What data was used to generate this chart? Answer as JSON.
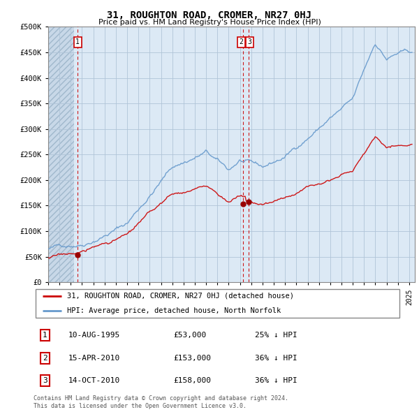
{
  "title": "31, ROUGHTON ROAD, CROMER, NR27 0HJ",
  "subtitle": "Price paid vs. HM Land Registry's House Price Index (HPI)",
  "bg_color": "#ffffff",
  "plot_bg_color": "#dce9f5",
  "hatch_bg_color": "#c8d8e8",
  "grid_color": "#b0c4d8",
  "red_line_color": "#cc0000",
  "blue_line_color": "#6699cc",
  "sale_marker_color": "#990000",
  "ylim": [
    0,
    500000
  ],
  "yticks": [
    0,
    50000,
    100000,
    150000,
    200000,
    250000,
    300000,
    350000,
    400000,
    450000,
    500000
  ],
  "ytick_labels": [
    "£0",
    "£50K",
    "£100K",
    "£150K",
    "£200K",
    "£250K",
    "£300K",
    "£350K",
    "£400K",
    "£450K",
    "£500K"
  ],
  "xlim_start": 1993.0,
  "xlim_end": 2025.5,
  "xticks": [
    1993,
    1994,
    1995,
    1996,
    1997,
    1998,
    1999,
    2000,
    2001,
    2002,
    2003,
    2004,
    2005,
    2006,
    2007,
    2008,
    2009,
    2010,
    2011,
    2012,
    2013,
    2014,
    2015,
    2016,
    2017,
    2018,
    2019,
    2020,
    2021,
    2022,
    2023,
    2024,
    2025
  ],
  "sale_points": [
    {
      "year": 1995.61,
      "price": 53000,
      "label": "1"
    },
    {
      "year": 2010.29,
      "price": 153000,
      "label": "2"
    },
    {
      "year": 2010.79,
      "price": 158000,
      "label": "3"
    }
  ],
  "legend_red_label": "31, ROUGHTON ROAD, CROMER, NR27 0HJ (detached house)",
  "legend_blue_label": "HPI: Average price, detached house, North Norfolk",
  "table_rows": [
    {
      "num": "1",
      "date": "10-AUG-1995",
      "price": "£53,000",
      "hpi": "25% ↓ HPI"
    },
    {
      "num": "2",
      "date": "15-APR-2010",
      "price": "£153,000",
      "hpi": "36% ↓ HPI"
    },
    {
      "num": "3",
      "date": "14-OCT-2010",
      "price": "£158,000",
      "hpi": "36% ↓ HPI"
    }
  ],
  "footer": "Contains HM Land Registry data © Crown copyright and database right 2024.\nThis data is licensed under the Open Government Licence v3.0."
}
